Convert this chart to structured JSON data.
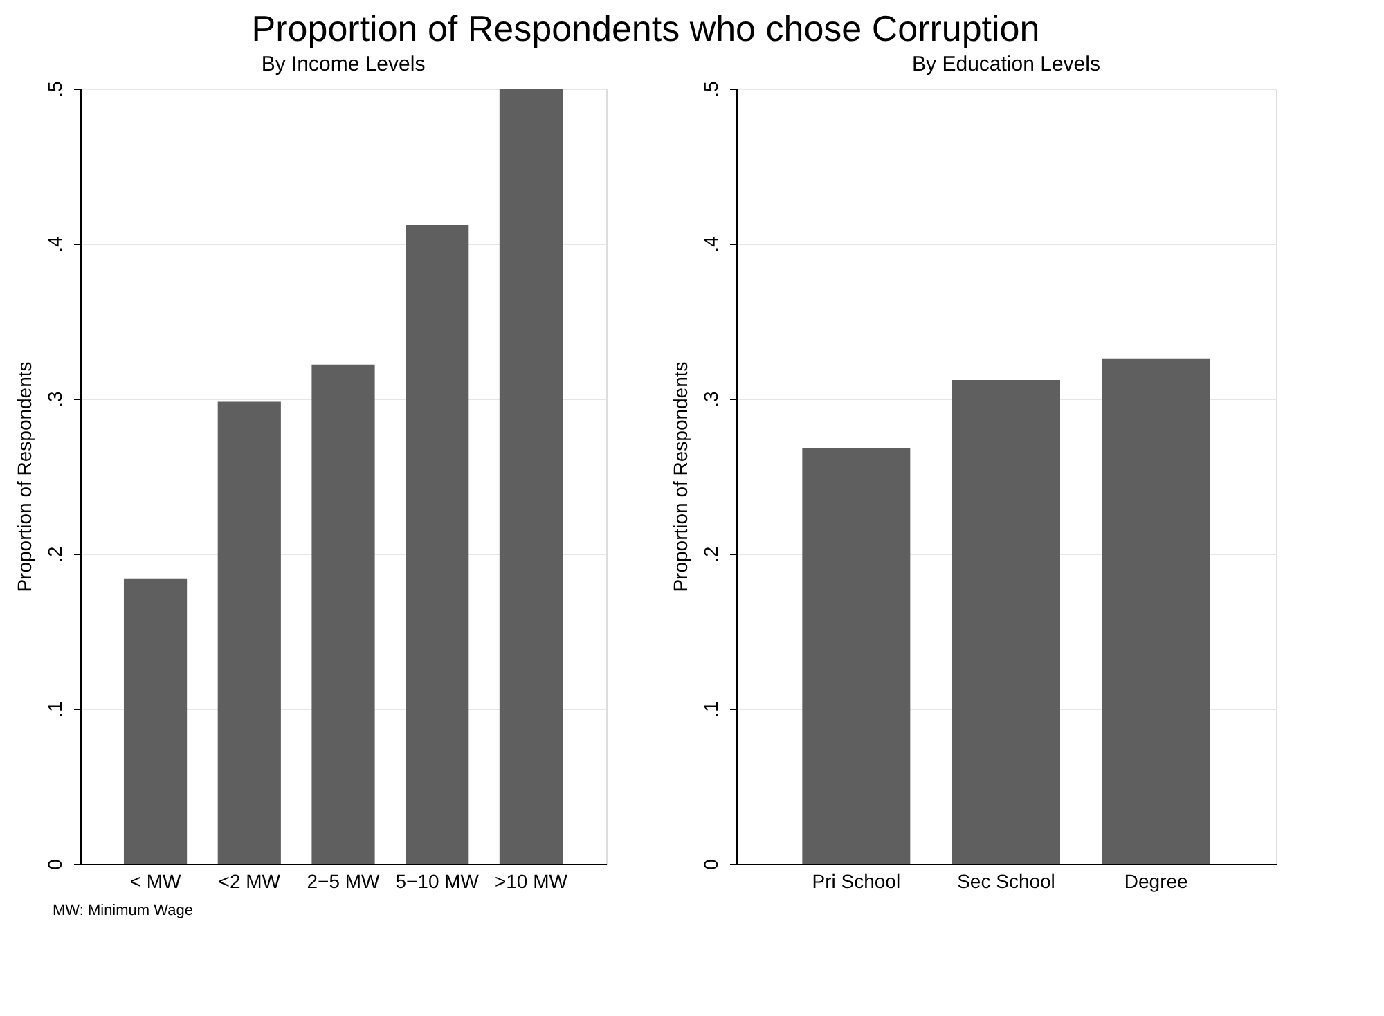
{
  "chart_data": [
    {
      "type": "bar",
      "title": "Proportion of Respondents who chose Corruption",
      "subtitle": "By Income Levels",
      "ylabel": "Proportion of Respondents",
      "categories": [
        "< MW",
        "<2 MW",
        "2−5 MW",
        "5−10 MW",
        ">10 MW"
      ],
      "values": [
        0.184,
        0.298,
        0.322,
        0.412,
        0.5
      ],
      "color": "#5f5f5f",
      "ylim": [
        0,
        0.5
      ],
      "yticks": [
        0,
        {
          "value": 0.1,
          "label": ".1"
        },
        {
          "value": 0.2,
          "label": ".2"
        },
        {
          "value": 0.3,
          "label": ".3"
        },
        {
          "value": 0.4,
          "label": ".4"
        },
        {
          "value": 0.5,
          "label": ".5"
        }
      ],
      "grid": "y",
      "annotations": [
        "MW: Minimum Wage"
      ]
    },
    {
      "type": "bar",
      "subtitle": "By Education Levels",
      "ylabel": "Proportion of Respondents",
      "categories": [
        "Pri School",
        "Sec School",
        "Degree"
      ],
      "values": [
        0.268,
        0.312,
        0.326
      ],
      "color": "#5f5f5f",
      "ylim": [
        0,
        0.5
      ],
      "yticks": [
        0,
        {
          "value": 0.1,
          "label": ".1"
        },
        {
          "value": 0.2,
          "label": ".2"
        },
        {
          "value": 0.3,
          "label": ".3"
        },
        {
          "value": 0.4,
          "label": ".4"
        },
        {
          "value": 0.5,
          "label": ".5"
        }
      ],
      "grid": "y"
    }
  ]
}
